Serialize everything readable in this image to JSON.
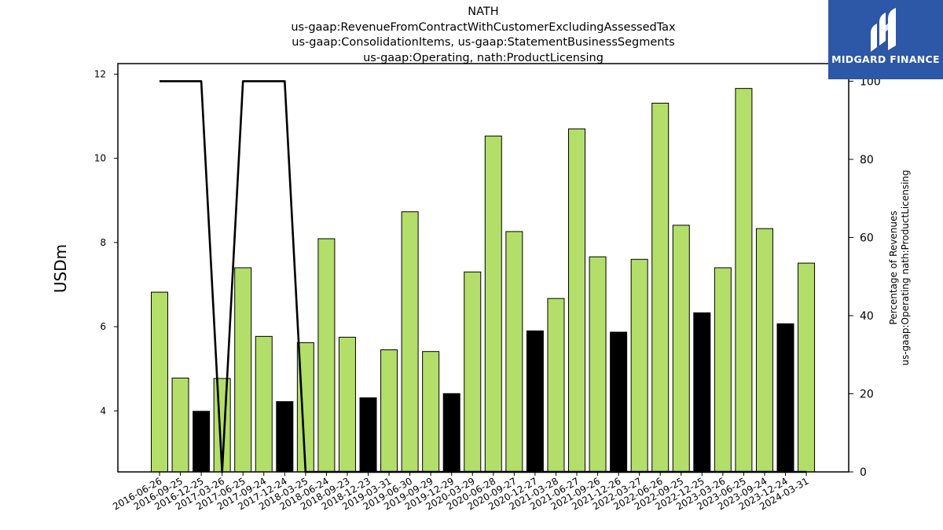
{
  "chart_data": {
    "type": "bar",
    "title_lines": [
      "NATH",
      "us-gaap:RevenueFromContractWithCustomerExcludingAssessedTax",
      "us-gaap:ConsolidationItems, us-gaap:StatementBusinessSegments",
      "us-gaap:Operating, nath:ProductLicensing"
    ],
    "ylabel": "USDm",
    "ylabel_right_lines": [
      "Percentage of Revenues",
      "us-gaap:Operating nath:ProductLicensing"
    ],
    "ylim": [
      2.55,
      12.25
    ],
    "y2lim": [
      0,
      104.5
    ],
    "yticks": [
      4,
      6,
      8,
      10,
      12
    ],
    "y2ticks": [
      0,
      20,
      40,
      60,
      80,
      100
    ],
    "categories": [
      "2016-06-26",
      "2016-09-25",
      "2016-12-25",
      "2017-03-26",
      "2017-06-25",
      "2017-09-24",
      "2017-12-24",
      "2018-03-25",
      "2018-06-24",
      "2018-09-23",
      "2018-12-23",
      "2019-03-31",
      "2019-06-30",
      "2019-09-29",
      "2019-12-29",
      "2020-03-29",
      "2020-06-28",
      "2020-09-27",
      "2020-12-27",
      "2021-03-28",
      "2021-06-27",
      "2021-09-26",
      "2021-12-26",
      "2022-03-27",
      "2022-06-26",
      "2022-09-25",
      "2022-12-25",
      "2023-03-26",
      "2023-06-25",
      "2023-09-24",
      "2023-12-24",
      "2024-03-31"
    ],
    "series": [
      {
        "values": [
          6.82,
          4.78,
          3.99,
          4.77,
          7.4,
          5.77,
          4.22,
          5.62,
          8.09,
          5.75,
          4.31,
          5.45,
          8.73,
          5.41,
          4.41,
          7.3,
          10.53,
          8.26,
          5.9,
          6.67,
          10.7,
          7.66,
          5.87,
          7.6,
          11.31,
          8.41,
          6.33,
          7.4,
          11.66,
          8.33,
          6.07,
          7.51
        ],
        "colors": [
          "#b3de69",
          "#b3de69",
          "#000000",
          "#b3de69",
          "#b3de69",
          "#b3de69",
          "#000000",
          "#b3de69",
          "#b3de69",
          "#b3de69",
          "#000000",
          "#b3de69",
          "#b3de69",
          "#b3de69",
          "#000000",
          "#b3de69",
          "#b3de69",
          "#b3de69",
          "#000000",
          "#b3de69",
          "#b3de69",
          "#b3de69",
          "#000000",
          "#b3de69",
          "#b3de69",
          "#b3de69",
          "#000000",
          "#b3de69",
          "#b3de69",
          "#b3de69",
          "#000000",
          "#b3de69"
        ]
      },
      {
        "type": "line",
        "axis": "right",
        "values": [
          100,
          100,
          100,
          0,
          100,
          100,
          100,
          0,
          0,
          0,
          0,
          0,
          0,
          0,
          0,
          0,
          0,
          0,
          0,
          0,
          0,
          0,
          0,
          0,
          0,
          0,
          0,
          0,
          0,
          0,
          0,
          0
        ],
        "color": "#000000"
      }
    ],
    "grid": false
  },
  "logo": {
    "text": "MIDGARD FINANCE",
    "color": "#2d57a7"
  }
}
